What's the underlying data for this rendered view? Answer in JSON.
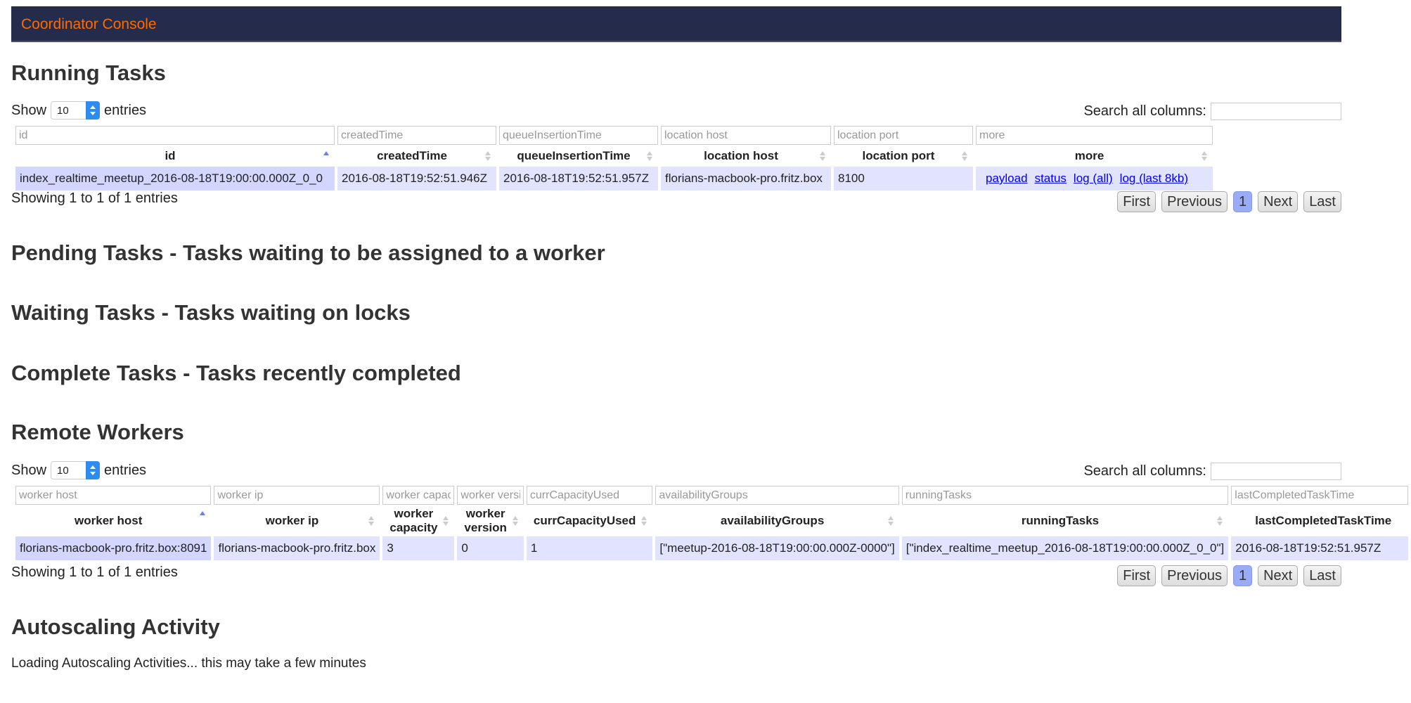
{
  "header": {
    "title": "Coordinator Console"
  },
  "running": {
    "heading": "Running Tasks",
    "show_label": "Show",
    "entries_label": "entries",
    "page_size": "10",
    "search_label": "Search all columns:",
    "filters": [
      "id",
      "createdTime",
      "queueInsertionTime",
      "location host",
      "location port",
      "more"
    ],
    "columns": [
      "id",
      "createdTime",
      "queueInsertionTime",
      "location host",
      "location port",
      "more"
    ],
    "rows": [
      {
        "id": "index_realtime_meetup_2016-08-18T19:00:00.000Z_0_0",
        "createdTime": "2016-08-18T19:52:51.946Z",
        "queueInsertionTime": "2016-08-18T19:52:51.957Z",
        "host": "florians-macbook-pro.fritz.box",
        "port": "8100",
        "links": [
          "payload",
          "status",
          "log (all)",
          "log (last 8kb)"
        ]
      }
    ],
    "info": "Showing 1 to 1 of 1 entries",
    "pager": {
      "first": "First",
      "previous": "Previous",
      "current": "1",
      "next": "Next",
      "last": "Last"
    }
  },
  "pending": {
    "heading": "Pending Tasks - Tasks waiting to be assigned to a worker"
  },
  "waiting": {
    "heading": "Waiting Tasks - Tasks waiting on locks"
  },
  "complete": {
    "heading": "Complete Tasks - Tasks recently completed"
  },
  "workers": {
    "heading": "Remote Workers",
    "show_label": "Show",
    "entries_label": "entries",
    "page_size": "10",
    "search_label": "Search all columns:",
    "filters": [
      "worker host",
      "worker ip",
      "worker capacity",
      "worker version",
      "currCapacityUsed",
      "availabilityGroups",
      "runningTasks",
      "lastCompletedTaskTime"
    ],
    "columns": [
      "worker host",
      "worker ip",
      "worker capacity",
      "worker version",
      "currCapacityUsed",
      "availabilityGroups",
      "runningTasks",
      "lastCompletedTaskTime"
    ],
    "rows": [
      {
        "host": "florians-macbook-pro.fritz.box:8091",
        "ip": "florians-macbook-pro.fritz.box",
        "capacity": "3",
        "version": "0",
        "used": "1",
        "groups": "[\"meetup-2016-08-18T19:00:00.000Z-0000\"]",
        "tasks": "[\"index_realtime_meetup_2016-08-18T19:00:00.000Z_0_0\"]",
        "last": "2016-08-18T19:52:51.957Z"
      }
    ],
    "info": "Showing 1 to 1 of 1 entries",
    "pager": {
      "first": "First",
      "previous": "Previous",
      "current": "1",
      "next": "Next",
      "last": "Last"
    }
  },
  "autoscaling": {
    "heading": "Autoscaling Activity",
    "loading": "Loading Autoscaling Activities... this may take a few minutes"
  },
  "colors": {
    "header_bg": "#252b4a",
    "brand": "#ff6a00",
    "row_bg": "#e2e4ff",
    "current_page": "#9aacf5"
  }
}
